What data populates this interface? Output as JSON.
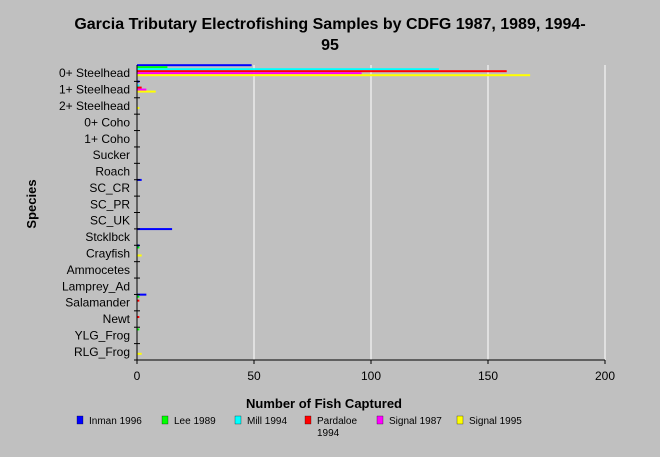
{
  "chart_data": {
    "type": "bar",
    "orientation": "horizontal",
    "title": "Garcia Tributary Electrofishing Samples by CDFG 1987, 1989, 1994-95",
    "xlabel": "Number of Fish Captured",
    "ylabel": "Species",
    "xlim": [
      0,
      200
    ],
    "xticks": [
      0,
      50,
      100,
      150,
      200
    ],
    "grid": "vertical",
    "legend_position": "bottom",
    "categories": [
      "0+ Steelhead",
      "1+ Steelhead",
      "2+ Steelhead",
      "0+ Coho",
      "1+ Coho",
      "Sucker",
      "Roach",
      "SC_CR",
      "SC_PR",
      "SC_UK",
      "Stcklbck",
      "Crayfish",
      "Ammocetes",
      "Lamprey_Ad",
      "Salamander",
      "Newt",
      "YLG_Frog",
      "RLG_Frog"
    ],
    "series": [
      {
        "name": "Inman 1996",
        "color": "#0000ff",
        "values": [
          49,
          1,
          0,
          0,
          0,
          0,
          0,
          2,
          0,
          0,
          15,
          1,
          0,
          0,
          4,
          0,
          0,
          0
        ]
      },
      {
        "name": "Lee 1989",
        "color": "#00ff00",
        "values": [
          13,
          0,
          0,
          0,
          0,
          0,
          0,
          0,
          0,
          0,
          0,
          1,
          0,
          0,
          1,
          0,
          1,
          0
        ]
      },
      {
        "name": "Mill 1994",
        "color": "#00ffff",
        "values": [
          129,
          1,
          0,
          0,
          0,
          0,
          0,
          0,
          0,
          0,
          0,
          0,
          0,
          0,
          0,
          0,
          0,
          0
        ]
      },
      {
        "name": "Pardaloe 1994",
        "color": "#ff0000",
        "values": [
          158,
          2,
          0,
          0,
          0,
          0,
          0,
          0,
          0,
          0,
          0,
          0,
          0,
          0,
          1,
          1,
          0,
          0
        ]
      },
      {
        "name": "Signal 1987",
        "color": "#ff00ff",
        "values": [
          96,
          4,
          0,
          0,
          0,
          0,
          0,
          0,
          0,
          0,
          0,
          0,
          0,
          0,
          0,
          0,
          0,
          0
        ]
      },
      {
        "name": "Signal 1995",
        "color": "#ffff00",
        "values": [
          168,
          8,
          1,
          0,
          0,
          0,
          0,
          0,
          0,
          0,
          0,
          2,
          0,
          0,
          0,
          0,
          0,
          2
        ]
      }
    ]
  }
}
